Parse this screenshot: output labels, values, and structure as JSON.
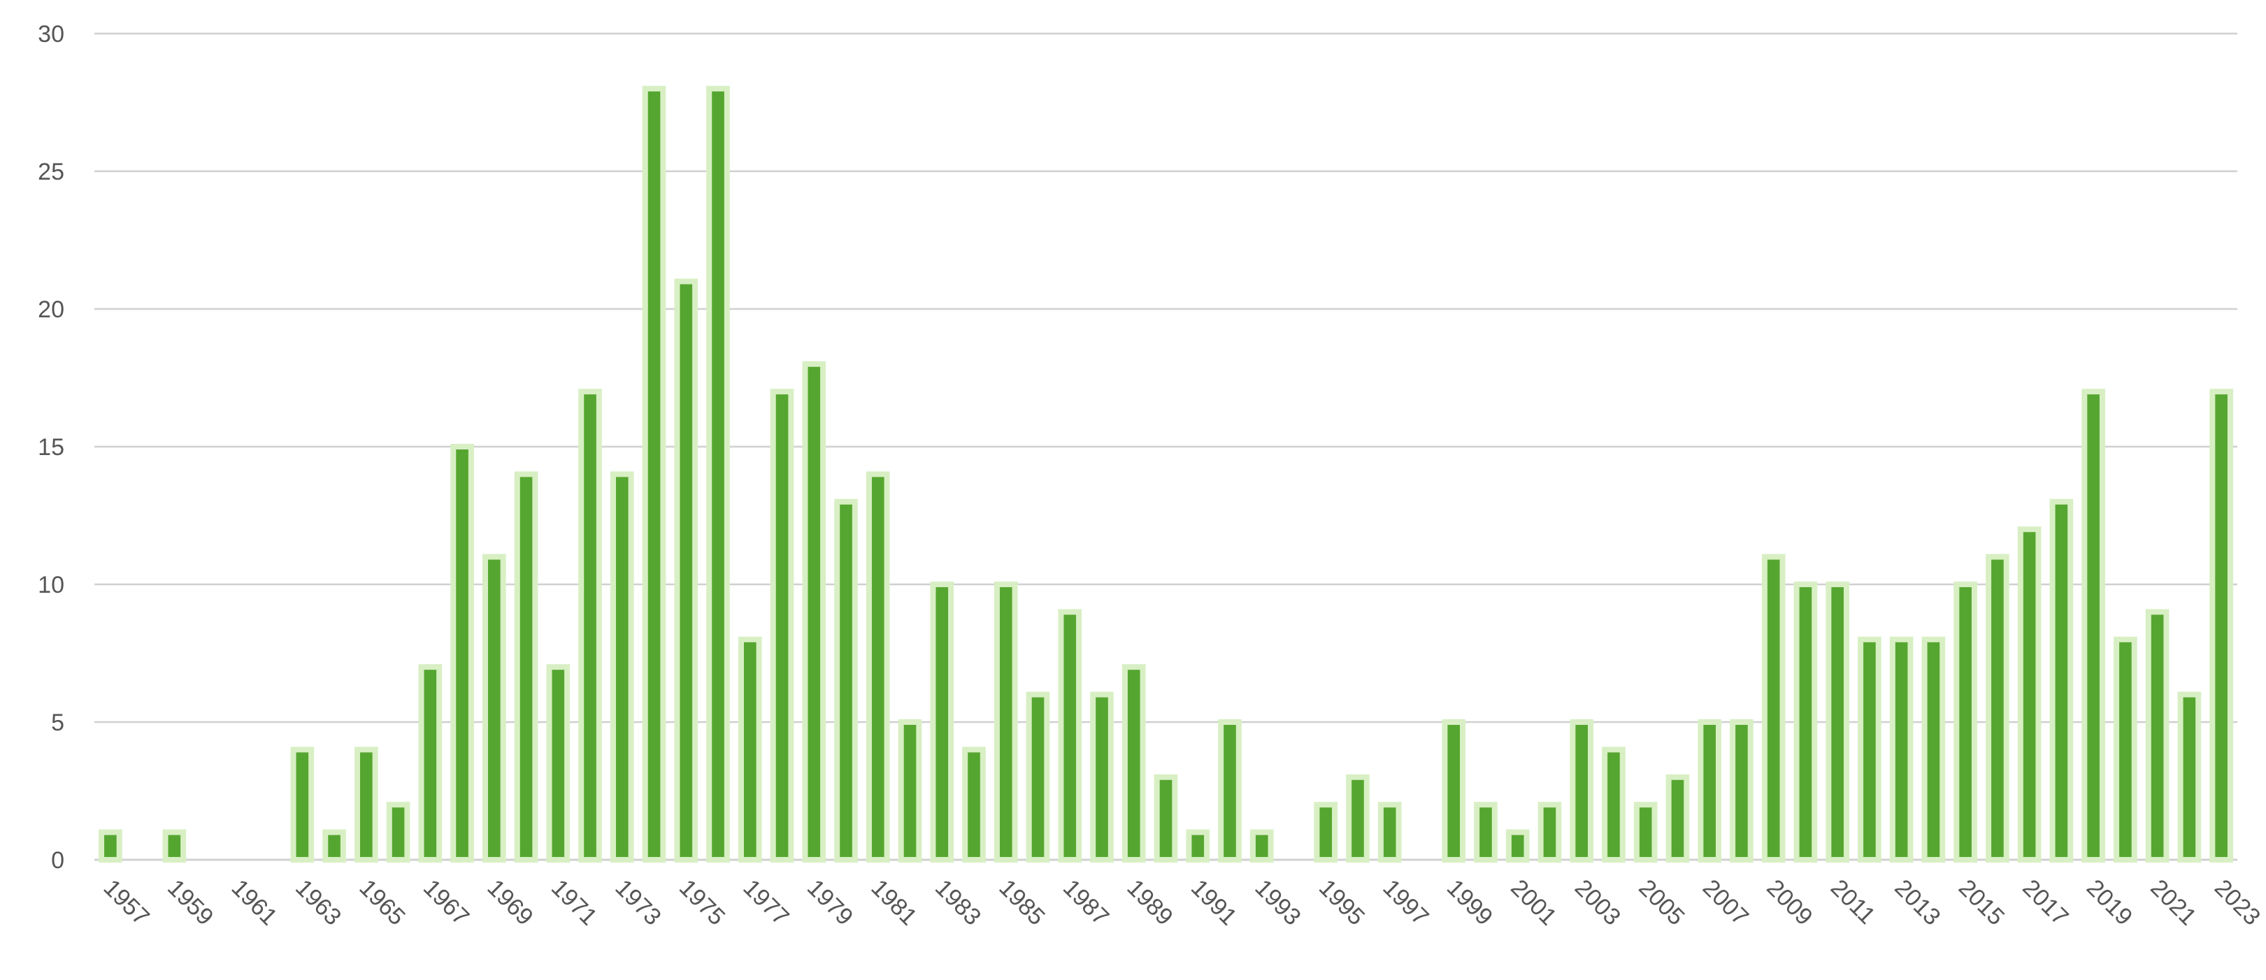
{
  "chart_data": {
    "type": "bar",
    "categories": [
      "1957",
      "1958",
      "1959",
      "1960",
      "1961",
      "1962",
      "1963",
      "1964",
      "1965",
      "1966",
      "1967",
      "1968",
      "1969",
      "1970",
      "1971",
      "1972",
      "1973",
      "1974",
      "1975",
      "1976",
      "1977",
      "1978",
      "1979",
      "1980",
      "1981",
      "1982",
      "1983",
      "1984",
      "1985",
      "1986",
      "1987",
      "1988",
      "1989",
      "1990",
      "1991",
      "1992",
      "1993",
      "1994",
      "1995",
      "1996",
      "1997",
      "1998",
      "1999",
      "2000",
      "2001",
      "2002",
      "2003",
      "2004",
      "2005",
      "2006",
      "2007",
      "2008",
      "2009",
      "2010",
      "2011",
      "2012",
      "2013",
      "2014",
      "2015",
      "2016",
      "2017",
      "2018",
      "2019",
      "2020",
      "2021",
      "2022",
      "2023"
    ],
    "values": [
      1,
      0,
      1,
      0,
      0,
      0,
      4,
      1,
      4,
      2,
      7,
      15,
      11,
      14,
      7,
      17,
      14,
      28,
      21,
      28,
      8,
      17,
      18,
      13,
      14,
      5,
      10,
      4,
      10,
      6,
      9,
      6,
      7,
      3,
      1,
      5,
      1,
      0,
      2,
      3,
      2,
      0,
      5,
      2,
      1,
      2,
      5,
      4,
      2,
      3,
      5,
      5,
      11,
      10,
      10,
      8,
      8,
      8,
      10,
      11,
      12,
      13,
      17,
      8,
      9,
      6,
      17
    ],
    "x_tick_labels": [
      "1957",
      "1959",
      "1961",
      "1963",
      "1965",
      "1967",
      "1969",
      "1971",
      "1973",
      "1975",
      "1977",
      "1979",
      "1981",
      "1983",
      "1985",
      "1987",
      "1989",
      "1991",
      "1993",
      "1995",
      "1997",
      "1999",
      "2001",
      "2003",
      "2005",
      "2007",
      "2009",
      "2011",
      "2013",
      "2015",
      "2017",
      "2019",
      "2021",
      "2023"
    ],
    "y_ticks": [
      "0",
      "5",
      "10",
      "15",
      "20",
      "25",
      "30"
    ],
    "ylim": [
      0,
      30
    ],
    "grid": true,
    "legend": "none",
    "colors": {
      "bar": "#55a630",
      "bar_outline": "#d8efc4",
      "grid": "#d0d0d0",
      "text": "#555555"
    }
  }
}
